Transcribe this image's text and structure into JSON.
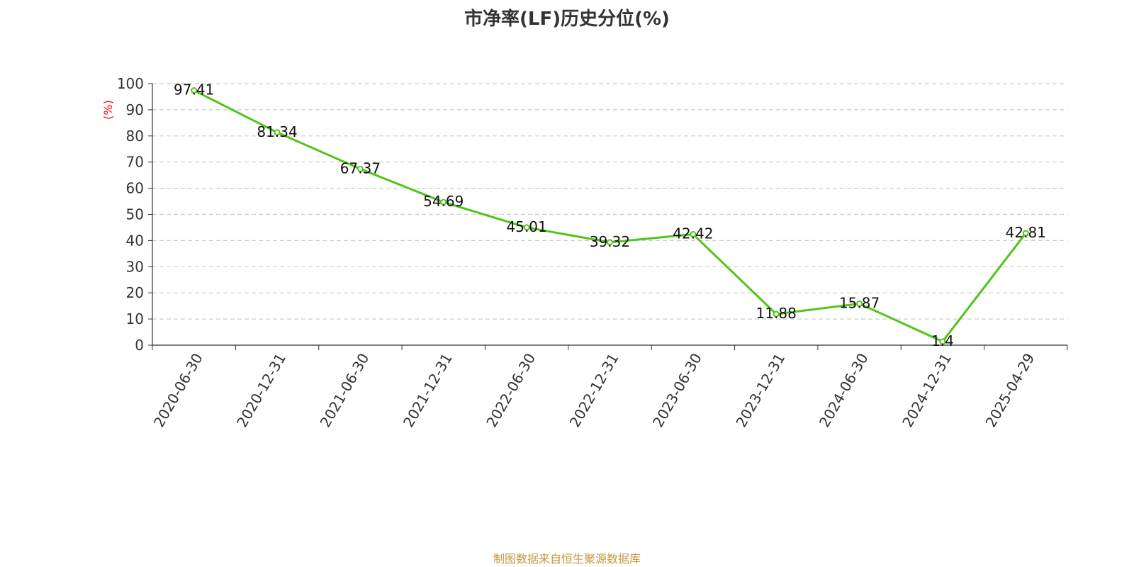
{
  "chart_data": {
    "type": "line",
    "title": "市净率(LF)历史分位(%)",
    "ylabel": "(%)",
    "xlabel": "",
    "ylim": [
      0,
      100
    ],
    "yticks": [
      0,
      10,
      20,
      30,
      40,
      50,
      60,
      70,
      80,
      90,
      100
    ],
    "grid": true,
    "categories": [
      "2020-06-30",
      "2020-12-31",
      "2021-06-30",
      "2021-12-31",
      "2022-06-30",
      "2022-12-31",
      "2023-06-30",
      "2023-12-31",
      "2024-06-30",
      "2024-12-31",
      "2025-04-29"
    ],
    "series": [
      {
        "values": [
          97.41,
          81.34,
          67.37,
          54.69,
          45.01,
          39.32,
          42.42,
          11.88,
          15.87,
          1.4,
          42.81
        ],
        "labels": [
          "97.41",
          "81.34",
          "67.37",
          "54.69",
          "45.01",
          "39.32",
          "42.42",
          "11.88",
          "15.87",
          "1.4",
          "42.81"
        ]
      }
    ]
  },
  "colors": {
    "line": "#52c41a",
    "ylabel": "#ff0000",
    "source": "#c8963c",
    "grid": "#cccccc",
    "axis": "#333333"
  },
  "footer": {
    "source": "制图数据来自恒生聚源数据库"
  }
}
